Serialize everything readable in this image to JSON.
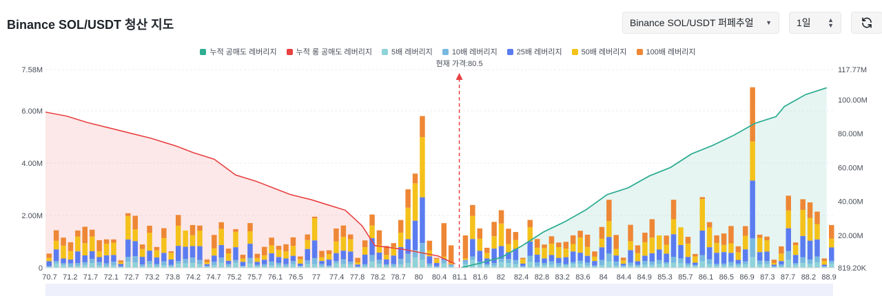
{
  "header": {
    "title": "Binance SOL/USDT 청산 지도",
    "exchange_select": "Binance SOL/USDT 퍼페추얼",
    "period_select": "1일",
    "refresh_icon": "refresh-icon"
  },
  "legend": [
    {
      "label": "누적 공매도 레버리지",
      "color": "#2ead92"
    },
    {
      "label": "누적 롱 공매도 레버리지",
      "color": "#e84142"
    },
    {
      "label": "5배 레버리지",
      "color": "#8fd3d9"
    },
    {
      "label": "10배 레버리지",
      "color": "#79b9e0"
    },
    {
      "label": "25배 레버리지",
      "color": "#5b7cf0"
    },
    {
      "label": "50배 레버리지",
      "color": "#f4c21b"
    },
    {
      "label": "100배 레버리지",
      "color": "#ee8735"
    }
  ],
  "chart_data": {
    "type": "bar",
    "current_price_label": "현재 가격:80.5",
    "current_price": 80.5,
    "x_range": [
      70.7,
      89.4
    ],
    "x_ticks": [
      "70.7",
      "71.2",
      "71.7",
      "72.1",
      "72.7",
      "73.2",
      "73.8",
      "74.2",
      "74.7",
      "75.2",
      "75.7",
      "76.1",
      "76.5",
      "77",
      "77.4",
      "77.8",
      "78.2",
      "78.7",
      "80",
      "80.4",
      "81.1",
      "81.6",
      "82",
      "82.4",
      "82.8",
      "83.2",
      "83.6",
      "84",
      "84.4",
      "84.9",
      "85.3",
      "85.7",
      "86.1",
      "86.5",
      "86.9",
      "87.3",
      "87.7",
      "88.2",
      "88.9"
    ],
    "y_left": {
      "min": 0,
      "max": 7.58,
      "unit": "M",
      "ticks": [
        "0",
        "2.00M",
        "4.00M",
        "6.00M",
        "7.58M"
      ],
      "tick_values": [
        0,
        2,
        4,
        6,
        7.58
      ]
    },
    "y_right": {
      "min": 0.8192,
      "max": 117.77,
      "unit": "M",
      "ticks": [
        "819.20K",
        "20.00M",
        "40.00M",
        "60.00M",
        "80.00M",
        "100.00M",
        "117.77M"
      ],
      "tick_values": [
        0.8192,
        20,
        40,
        60,
        80,
        100,
        117.77
      ]
    },
    "bar_series": [
      "5배 레버리지",
      "10배 레버리지",
      "25배 레버리지",
      "50배 레버리지",
      "100배 레버리지"
    ],
    "bar_count": 110,
    "cumulative_short_points": [
      [
        80.55,
        0.9
      ],
      [
        80.9,
        3
      ],
      [
        81.5,
        7
      ],
      [
        82,
        14
      ],
      [
        82.5,
        22
      ],
      [
        83,
        28
      ],
      [
        83.5,
        35
      ],
      [
        84,
        44
      ],
      [
        84.5,
        48
      ],
      [
        85,
        55
      ],
      [
        85.5,
        60
      ],
      [
        86,
        68
      ],
      [
        86.5,
        73
      ],
      [
        87,
        79
      ],
      [
        87.5,
        86
      ],
      [
        88,
        90
      ],
      [
        88.2,
        96
      ],
      [
        88.7,
        103
      ],
      [
        89.2,
        107
      ]
    ],
    "cumulative_long_points": [
      [
        70.7,
        5.95
      ],
      [
        71.2,
        5.8
      ],
      [
        71.7,
        5.55
      ],
      [
        72.2,
        5.35
      ],
      [
        72.7,
        5.15
      ],
      [
        73.2,
        4.95
      ],
      [
        73.8,
        4.65
      ],
      [
        74.2,
        4.4
      ],
      [
        74.7,
        4.15
      ],
      [
        75.2,
        3.55
      ],
      [
        75.7,
        3.3
      ],
      [
        76.1,
        3.05
      ],
      [
        76.5,
        2.8
      ],
      [
        77,
        2.6
      ],
      [
        77.4,
        2.4
      ],
      [
        77.8,
        2.2
      ],
      [
        78.2,
        1.6
      ],
      [
        78.5,
        0.85
      ],
      [
        79.2,
        0.7
      ],
      [
        80,
        0.45
      ],
      [
        80.4,
        0.15
      ]
    ]
  }
}
